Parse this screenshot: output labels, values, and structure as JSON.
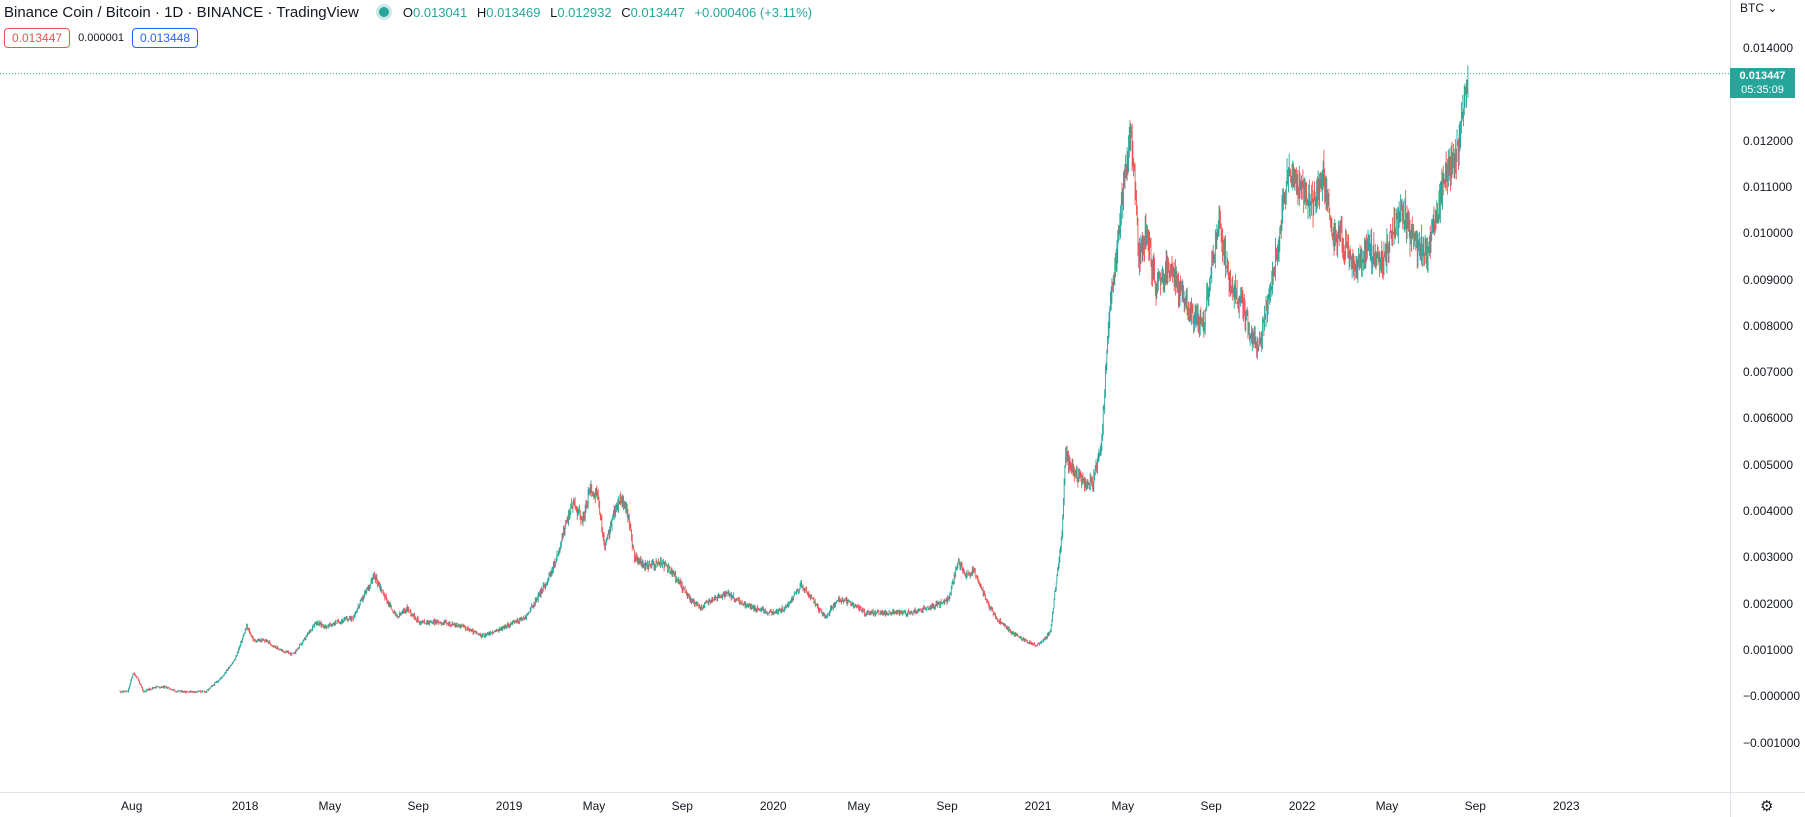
{
  "header": {
    "title": "Binance Coin / Bitcoin · 1D · BINANCE · TradingView",
    "ohlc": {
      "o_label": "O",
      "o": "0.013041",
      "h_label": "H",
      "h": "0.013469",
      "l_label": "L",
      "l": "0.012932",
      "c_label": "C",
      "c": "0.013447",
      "change": "+0.000406 (+3.11%)"
    }
  },
  "quote": {
    "bid": "0.013447",
    "spread": "0.000001",
    "ask": "0.013448"
  },
  "axis": {
    "unit": "BTC",
    "price_ticks": [
      "0.014000",
      "0.013000",
      "0.012000",
      "0.011000",
      "0.010000",
      "0.009000",
      "0.008000",
      "0.007000",
      "0.006000",
      "0.005000",
      "0.004000",
      "0.003000",
      "0.002000",
      "0.001000",
      "−0.000000",
      "−0.001000"
    ],
    "time_ticks": [
      "Aug",
      "2018",
      "May",
      "Sep",
      "2019",
      "May",
      "Sep",
      "2020",
      "May",
      "Sep",
      "2021",
      "May",
      "Sep",
      "2022",
      "May",
      "Sep",
      "2023"
    ]
  },
  "last_price": {
    "value": "0.013447",
    "countdown": "05:35:09"
  },
  "colors": {
    "up": "#26a69a",
    "down": "#ef5350",
    "grid": "#e0e3eb",
    "text": "#131722"
  },
  "chart_data": {
    "type": "candlestick",
    "title": "Binance Coin / Bitcoin · 1D · BINANCE",
    "ylim": [
      -0.0013,
      0.0147
    ],
    "x_range": [
      "2017-07-14",
      "2023-02-20"
    ],
    "series": [
      {
        "name": "BNB/BTC",
        "points": [
          [
            "2017-07-14",
            0.0001
          ],
          [
            "2017-07-25",
            0.0001
          ],
          [
            "2017-08-01",
            0.0005
          ],
          [
            "2017-08-07",
            0.0004
          ],
          [
            "2017-08-15",
            0.0001
          ],
          [
            "2017-09-01",
            0.0002
          ],
          [
            "2017-09-15",
            0.0002
          ],
          [
            "2017-10-01",
            0.0001
          ],
          [
            "2017-10-20",
            0.0001
          ],
          [
            "2017-11-10",
            0.0001
          ],
          [
            "2017-12-01",
            0.0004
          ],
          [
            "2017-12-20",
            0.0008
          ],
          [
            "2018-01-05",
            0.0015
          ],
          [
            "2018-01-15",
            0.0012
          ],
          [
            "2018-02-01",
            0.0012
          ],
          [
            "2018-02-20",
            0.001
          ],
          [
            "2018-03-10",
            0.0009
          ],
          [
            "2018-03-25",
            0.0012
          ],
          [
            "2018-04-10",
            0.0016
          ],
          [
            "2018-04-25",
            0.0015
          ],
          [
            "2018-05-10",
            0.0016
          ],
          [
            "2018-06-01",
            0.0017
          ],
          [
            "2018-06-20",
            0.0023
          ],
          [
            "2018-07-01",
            0.0026
          ],
          [
            "2018-07-20",
            0.002
          ],
          [
            "2018-08-01",
            0.0017
          ],
          [
            "2018-08-15",
            0.0019
          ],
          [
            "2018-09-01",
            0.0016
          ],
          [
            "2018-10-01",
            0.0016
          ],
          [
            "2018-11-01",
            0.0015
          ],
          [
            "2018-11-25",
            0.0013
          ],
          [
            "2018-12-15",
            0.0014
          ],
          [
            "2019-01-10",
            0.0016
          ],
          [
            "2019-01-25",
            0.0017
          ],
          [
            "2019-02-10",
            0.0021
          ],
          [
            "2019-02-25",
            0.0025
          ],
          [
            "2019-03-10",
            0.003
          ],
          [
            "2019-03-20",
            0.0036
          ],
          [
            "2019-04-01",
            0.0042
          ],
          [
            "2019-04-15",
            0.0038
          ],
          [
            "2019-04-25",
            0.0045
          ],
          [
            "2019-05-05",
            0.0043
          ],
          [
            "2019-05-15",
            0.0032
          ],
          [
            "2019-05-25",
            0.0038
          ],
          [
            "2019-06-05",
            0.0043
          ],
          [
            "2019-06-15",
            0.004
          ],
          [
            "2019-06-25",
            0.003
          ],
          [
            "2019-07-10",
            0.0028
          ],
          [
            "2019-08-01",
            0.0029
          ],
          [
            "2019-08-20",
            0.0026
          ],
          [
            "2019-09-10",
            0.0021
          ],
          [
            "2019-09-25",
            0.0019
          ],
          [
            "2019-10-10",
            0.0021
          ],
          [
            "2019-11-01",
            0.0022
          ],
          [
            "2019-11-20",
            0.002
          ],
          [
            "2019-12-10",
            0.0019
          ],
          [
            "2020-01-01",
            0.0018
          ],
          [
            "2020-01-20",
            0.0019
          ],
          [
            "2020-02-10",
            0.0024
          ],
          [
            "2020-02-25",
            0.0021
          ],
          [
            "2020-03-15",
            0.0017
          ],
          [
            "2020-04-01",
            0.0021
          ],
          [
            "2020-04-20",
            0.002
          ],
          [
            "2020-05-10",
            0.0018
          ],
          [
            "2020-06-01",
            0.0018
          ],
          [
            "2020-06-20",
            0.0018
          ],
          [
            "2020-07-10",
            0.0018
          ],
          [
            "2020-08-01",
            0.0019
          ],
          [
            "2020-08-20",
            0.002
          ],
          [
            "2020-09-01",
            0.0021
          ],
          [
            "2020-09-15",
            0.0029
          ],
          [
            "2020-09-25",
            0.0026
          ],
          [
            "2020-10-05",
            0.0027
          ],
          [
            "2020-10-20",
            0.0022
          ],
          [
            "2020-11-05",
            0.0017
          ],
          [
            "2020-11-25",
            0.0014
          ],
          [
            "2020-12-15",
            0.0012
          ],
          [
            "2021-01-01",
            0.0011
          ],
          [
            "2021-01-10",
            0.0012
          ],
          [
            "2021-01-20",
            0.0014
          ],
          [
            "2021-01-28",
            0.0025
          ],
          [
            "2021-02-05",
            0.0035
          ],
          [
            "2021-02-10",
            0.0052
          ],
          [
            "2021-02-20",
            0.0049
          ],
          [
            "2021-03-01",
            0.0047
          ],
          [
            "2021-03-20",
            0.0046
          ],
          [
            "2021-04-01",
            0.0056
          ],
          [
            "2021-04-10",
            0.008
          ],
          [
            "2021-04-20",
            0.0095
          ],
          [
            "2021-05-01",
            0.011
          ],
          [
            "2021-05-10",
            0.0122
          ],
          [
            "2021-05-15",
            0.0115
          ],
          [
            "2021-05-22",
            0.0095
          ],
          [
            "2021-06-01",
            0.01
          ],
          [
            "2021-06-15",
            0.0088
          ],
          [
            "2021-07-01",
            0.0093
          ],
          [
            "2021-07-20",
            0.0087
          ],
          [
            "2021-08-01",
            0.0082
          ],
          [
            "2021-08-20",
            0.008
          ],
          [
            "2021-09-01",
            0.0095
          ],
          [
            "2021-09-10",
            0.0102
          ],
          [
            "2021-09-25",
            0.009
          ],
          [
            "2021-10-10",
            0.0085
          ],
          [
            "2021-10-25",
            0.0078
          ],
          [
            "2021-11-05",
            0.0076
          ],
          [
            "2021-11-20",
            0.0088
          ],
          [
            "2021-12-05",
            0.0102
          ],
          [
            "2021-12-15",
            0.0114
          ],
          [
            "2022-01-01",
            0.011
          ],
          [
            "2022-01-15",
            0.0105
          ],
          [
            "2022-02-01",
            0.0112
          ],
          [
            "2022-02-15",
            0.01
          ],
          [
            "2022-03-01",
            0.0098
          ],
          [
            "2022-03-20",
            0.0093
          ],
          [
            "2022-04-05",
            0.0097
          ],
          [
            "2022-04-25",
            0.0094
          ],
          [
            "2022-05-10",
            0.0101
          ],
          [
            "2022-05-25",
            0.0104
          ],
          [
            "2022-06-05",
            0.0098
          ],
          [
            "2022-06-15",
            0.0097
          ],
          [
            "2022-06-25",
            0.0095
          ],
          [
            "2022-07-01",
            0.01
          ],
          [
            "2022-07-10",
            0.0105
          ],
          [
            "2022-07-20",
            0.0113
          ],
          [
            "2022-08-01",
            0.0115
          ],
          [
            "2022-08-10",
            0.0122
          ],
          [
            "2022-08-20",
            0.0134
          ]
        ]
      }
    ]
  }
}
